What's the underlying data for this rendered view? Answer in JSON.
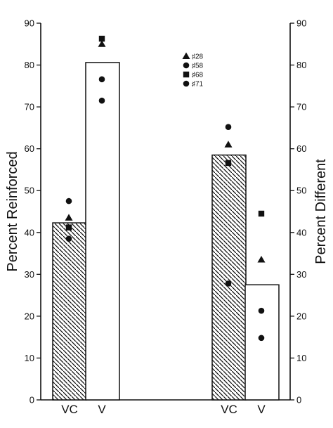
{
  "chart_data": {
    "type": "bar",
    "ylabel_left": "Percent Reinforced",
    "ylabel_right": "Percent Different",
    "ylim": [
      0,
      90
    ],
    "yticks": [
      "0",
      "10",
      "20",
      "30",
      "40",
      "50",
      "60",
      "70",
      "80",
      "90"
    ],
    "grid": false,
    "legend_placement": "top-center",
    "groups": [
      {
        "axis": "left",
        "bars": [
          {
            "label": "VC",
            "value": 42.3,
            "fill": "hatched",
            "points": [
              {
                "subject": "#28",
                "value": 43.5
              },
              {
                "subject": "#58",
                "value": 47.5
              },
              {
                "subject": "#68",
                "value": 41.2
              },
              {
                "subject": "#71",
                "value": 38.5
              }
            ]
          },
          {
            "label": "V",
            "value": 80.6,
            "fill": "open",
            "points": [
              {
                "subject": "#28",
                "value": 85.0
              },
              {
                "subject": "#58",
                "value": 76.6
              },
              {
                "subject": "#68",
                "value": 86.3
              },
              {
                "subject": "#71",
                "value": 71.5
              }
            ]
          }
        ]
      },
      {
        "axis": "right",
        "bars": [
          {
            "label": "VC",
            "value": 58.5,
            "fill": "hatched",
            "points": [
              {
                "subject": "#28",
                "value": 61.0
              },
              {
                "subject": "#58",
                "value": 65.2
              },
              {
                "subject": "#68",
                "value": 56.6
              },
              {
                "subject": "#71",
                "value": 27.8
              }
            ]
          },
          {
            "label": "V",
            "value": 27.5,
            "fill": "open",
            "points": [
              {
                "subject": "#28",
                "value": 33.5
              },
              {
                "subject": "#58",
                "value": 21.3
              },
              {
                "subject": "#68",
                "value": 44.5
              },
              {
                "subject": "#71",
                "value": 14.8
              }
            ]
          }
        ]
      }
    ],
    "legend": [
      {
        "subject": "#28",
        "label": "♯28",
        "marker": "triangle"
      },
      {
        "subject": "#58",
        "label": "♯58",
        "marker": "circle"
      },
      {
        "subject": "#68",
        "label": "♯68",
        "marker": "square"
      },
      {
        "subject": "#71",
        "label": "♯71",
        "marker": "circle"
      }
    ],
    "colors": {
      "ink": "#111111",
      "background": "#ffffff"
    }
  }
}
